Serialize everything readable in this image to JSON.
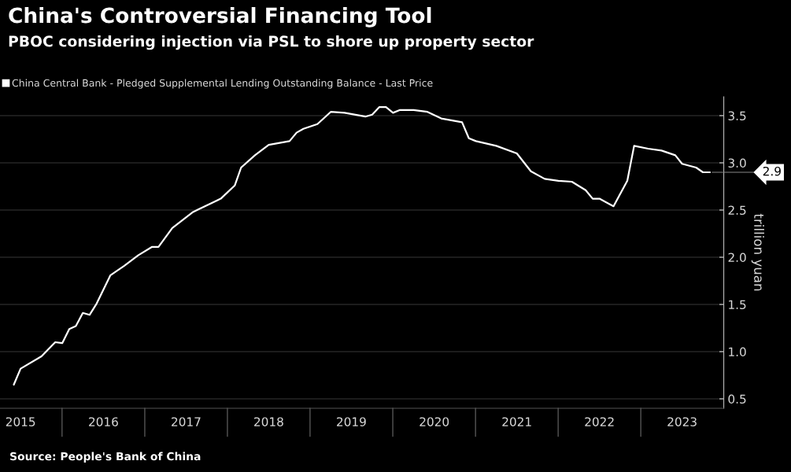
{
  "chart_data": {
    "type": "line",
    "title": "China's Controversial Financing Tool",
    "subtitle": "PBOC considering injection via PSL to shore up property sector",
    "ylabel": "trillion yuan",
    "x": [
      "2015-06",
      "2015-07",
      "2015-10",
      "2015-12",
      "2016-01",
      "2016-02",
      "2016-03",
      "2016-04",
      "2016-05",
      "2016-06",
      "2016-08",
      "2016-10",
      "2016-12",
      "2017-02",
      "2017-03",
      "2017-05",
      "2017-08",
      "2017-12",
      "2018-02",
      "2018-03",
      "2018-05",
      "2018-07",
      "2018-10",
      "2018-11",
      "2018-12",
      "2019-02",
      "2019-04",
      "2019-06",
      "2019-09",
      "2019-10",
      "2019-11",
      "2019-12",
      "2020-01",
      "2020-02",
      "2020-04",
      "2020-06",
      "2020-08",
      "2020-11",
      "2020-12",
      "2021-01",
      "2021-04",
      "2021-07",
      "2021-09",
      "2021-11",
      "2022-01",
      "2022-03",
      "2022-05",
      "2022-06",
      "2022-07",
      "2022-09",
      "2022-11",
      "2022-12",
      "2023-02",
      "2023-04",
      "2023-06",
      "2023-07",
      "2023-09",
      "2023-10",
      "2023-11"
    ],
    "series": [
      {
        "name": "China Central Bank - Pledged Supplemental Lending Outstanding Balance - Last Price",
        "color": "#ffffff",
        "values": [
          0.65,
          0.82,
          0.95,
          1.1,
          1.09,
          1.24,
          1.27,
          1.41,
          1.39,
          1.51,
          1.81,
          1.91,
          2.02,
          2.11,
          2.11,
          2.31,
          2.48,
          2.62,
          2.76,
          2.95,
          3.08,
          3.19,
          3.23,
          3.32,
          3.36,
          3.41,
          3.54,
          3.53,
          3.49,
          3.51,
          3.59,
          3.59,
          3.53,
          3.56,
          3.56,
          3.54,
          3.47,
          3.43,
          3.26,
          3.23,
          3.18,
          3.1,
          2.91,
          2.83,
          2.81,
          2.8,
          2.71,
          2.62,
          2.62,
          2.54,
          2.81,
          3.18,
          3.15,
          3.13,
          3.08,
          2.99,
          2.95,
          2.9,
          2.9
        ]
      }
    ],
    "xlim": [
      "2015-04",
      "2024-01"
    ],
    "xticks": [
      {
        "value": "2015-07-01",
        "label": "2015"
      },
      {
        "value": "2016-07-01",
        "label": "2016"
      },
      {
        "value": "2017-07-01",
        "label": "2017"
      },
      {
        "value": "2018-07-01",
        "label": "2018"
      },
      {
        "value": "2019-07-01",
        "label": "2019"
      },
      {
        "value": "2020-07-01",
        "label": "2020"
      },
      {
        "value": "2021-07-01",
        "label": "2021"
      },
      {
        "value": "2022-07-01",
        "label": "2022"
      },
      {
        "value": "2023-07-01",
        "label": "2023"
      }
    ],
    "ylim": [
      0.4,
      3.7
    ],
    "yticks": [
      {
        "value": 0.5,
        "label": "0.5"
      },
      {
        "value": 1.0,
        "label": "1.0"
      },
      {
        "value": 1.5,
        "label": "1.5"
      },
      {
        "value": 2.0,
        "label": "2.0"
      },
      {
        "value": 2.5,
        "label": "2.5"
      },
      {
        "value": 3.0,
        "label": "3.0"
      },
      {
        "value": 3.5,
        "label": "3.5"
      }
    ],
    "grid": "y",
    "legend": "top left",
    "annotations": [
      {
        "text": "2.9",
        "x": "2023-11",
        "y": 2.9
      },
      "Source: People's Bank of China"
    ]
  }
}
